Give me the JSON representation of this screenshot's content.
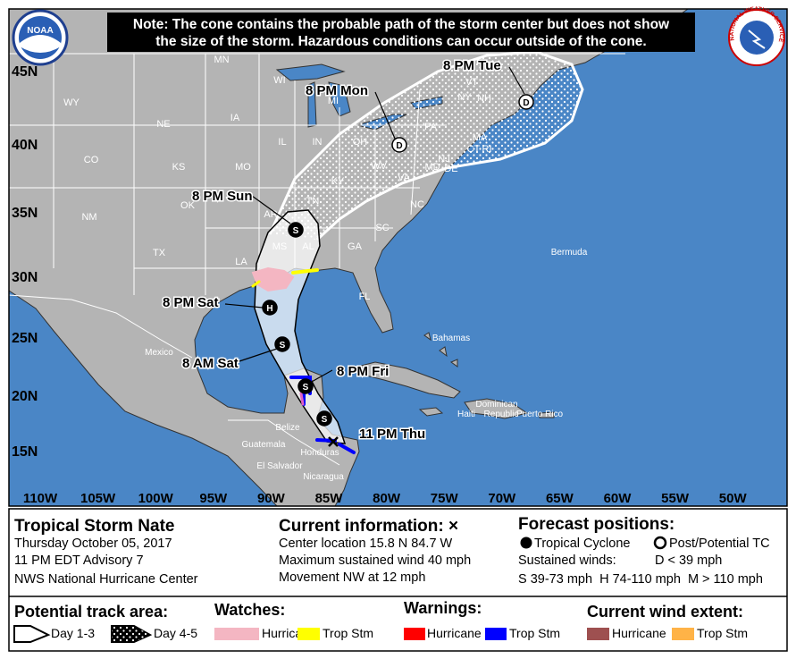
{
  "note": [
    "Note: The cone contains the probable path of the storm center but does not show",
    "the size of the storm. Hazardous conditions can occur outside of the cone."
  ],
  "logos": {
    "left": "NOAA",
    "right": "NATIONAL WEATHER SERVICE"
  },
  "lat_labels": [
    "45N",
    "40N",
    "35N",
    "30N",
    "25N",
    "20N",
    "15N"
  ],
  "lon_labels": [
    "110W",
    "105W",
    "100W",
    "95W",
    "90W",
    "85W",
    "80W",
    "75W",
    "70W",
    "65W",
    "60W",
    "55W",
    "50W"
  ],
  "places": [
    "WY",
    "NE",
    "IA",
    "IL",
    "IN",
    "OH",
    "PA",
    "NY",
    "WV",
    "VA",
    "KY",
    "TN",
    "NC",
    "SC",
    "GA",
    "AL",
    "MS",
    "LA",
    "AR",
    "MO",
    "KS",
    "OK",
    "TX",
    "NM",
    "CO",
    "MN",
    "WI",
    "MI",
    "VT",
    "NH",
    "MA",
    "CT",
    "NJ",
    "MD",
    "DE",
    "RI",
    "FL",
    "Mexico",
    "Guatemala",
    "Belize",
    "Honduras",
    "El Salvador",
    "Nicaragua",
    "Bahamas",
    "Bermuda",
    "Dominican",
    "Republic",
    "Puerto Rico",
    "Haiti"
  ],
  "forecast_points": [
    {
      "label": "11 PM Thu"
    },
    {
      "symbol": "S"
    },
    {
      "label": "8 PM Fri",
      "symbol": "S"
    },
    {
      "label": "8 AM Sat",
      "symbol": "S"
    },
    {
      "label": "8 PM Sat",
      "symbol": "H"
    },
    {
      "label": "8 PM Sun",
      "symbol": "S"
    },
    {
      "label": "8 PM Mon",
      "symbol": "D"
    },
    {
      "label": "8 PM Tue",
      "symbol": "D"
    }
  ],
  "info": {
    "title": "Tropical Storm Nate",
    "date": "Thursday October 05, 2017",
    "advisory": "11 PM EDT Advisory 7",
    "center": "NWS National Hurricane Center"
  },
  "current": {
    "header": "Current information: ×",
    "lines": [
      "Center location 15.8 N 84.7 W",
      "Maximum sustained wind 40 mph",
      "Movement NW at 12 mph"
    ]
  },
  "forecast_legend": {
    "header": "Forecast positions:",
    "tropical": "Tropical Cyclone",
    "post": "Post/Potential TC",
    "winds": "Sustained winds:",
    "d": "D < 39 mph",
    "scale": "S 39-73 mph  H 74-110 mph  M > 110 mph"
  },
  "legend": {
    "track": {
      "header": "Potential track area:",
      "day13": "Day 1-3",
      "day45": "Day 4-5"
    },
    "watches": {
      "header": "Watches:",
      "hurricane": "Hurricane",
      "tropstm": "Trop Stm"
    },
    "warnings": {
      "header": "Warnings:",
      "hurricane": "Hurricane",
      "tropstm": "Trop Stm"
    },
    "wind": {
      "header": "Current wind extent:",
      "hurricane": "Hurricane",
      "tropstm": "Trop Stm"
    }
  }
}
